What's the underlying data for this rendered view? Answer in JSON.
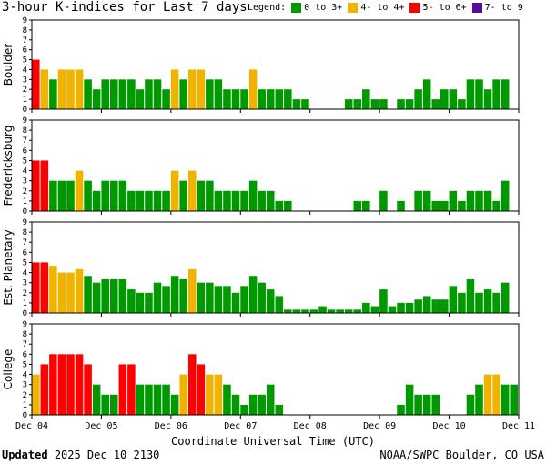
{
  "title": "3-hour K-indices for Last 7 days",
  "legend": {
    "label": "Legend:",
    "items": [
      {
        "label": "0 to 3+",
        "color": "#009900"
      },
      {
        "label": "4- to 4+",
        "color": "#f0b400"
      },
      {
        "label": "5- to 6+",
        "color": "#ff0000"
      },
      {
        "label": "7- to 9",
        "color": "#5a0aa0"
      }
    ]
  },
  "xlabel": "Coordinate Universal Time (UTC)",
  "updated_label": "Updated",
  "updated_value": "2025 Dec 10 2130",
  "credit": "NOAA/SWPC Boulder, CO USA",
  "chart_data": {
    "type": "bar",
    "x_tick_labels": [
      "Dec 04",
      "Dec 05",
      "Dec 06",
      "Dec 07",
      "Dec 08",
      "Dec 09",
      "Dec 10",
      "Dec 11"
    ],
    "y_ticks": [
      0,
      1,
      2,
      3,
      4,
      5,
      6,
      7,
      8,
      9
    ],
    "ylim": [
      0,
      9
    ],
    "panels": [
      {
        "name": "Boulder",
        "values": [
          5,
          4,
          3,
          4,
          4,
          4,
          3,
          2,
          3,
          3,
          3,
          3,
          2,
          3,
          3,
          2,
          4,
          3,
          4,
          4,
          3,
          3,
          2,
          2,
          2,
          4,
          2,
          2,
          2,
          2,
          1,
          1,
          0,
          0,
          0,
          0,
          1,
          1,
          2,
          1,
          1,
          0,
          1,
          1,
          2,
          3,
          1,
          2,
          2,
          1,
          3,
          3,
          2,
          3,
          3,
          0
        ]
      },
      {
        "name": "Fredericksburg",
        "values": [
          5,
          5,
          3,
          3,
          3,
          4,
          3,
          2,
          3,
          3,
          3,
          2,
          2,
          2,
          2,
          2,
          4,
          3,
          4,
          3,
          3,
          2,
          2,
          2,
          2,
          3,
          2,
          2,
          1,
          1,
          0,
          0,
          0,
          0,
          0,
          0,
          0,
          1,
          1,
          0,
          2,
          0,
          1,
          0,
          2,
          2,
          1,
          1,
          2,
          1,
          2,
          2,
          2,
          1,
          3,
          0
        ]
      },
      {
        "name": "Est. Planetary",
        "values": [
          5,
          5,
          4.67,
          4,
          4,
          4.33,
          3.67,
          3,
          3.33,
          3.33,
          3.33,
          2.33,
          2,
          2,
          3,
          2.67,
          3.67,
          3.33,
          4.33,
          3,
          3,
          2.67,
          2.67,
          2,
          2.67,
          3.67,
          3,
          2.33,
          1.67,
          0.33,
          0.33,
          0.33,
          0.33,
          0.67,
          0.33,
          0.33,
          0.33,
          0.33,
          1,
          0.67,
          2.33,
          0.67,
          1,
          1,
          1.33,
          1.67,
          1.33,
          1.33,
          2.67,
          2,
          3.33,
          2,
          2.33,
          2,
          3,
          0
        ]
      },
      {
        "name": "College",
        "values": [
          4,
          5,
          6,
          6,
          6,
          6,
          5,
          3,
          2,
          2,
          5,
          5,
          3,
          3,
          3,
          3,
          2,
          4,
          6,
          5,
          4,
          4,
          3,
          2,
          1,
          2,
          2,
          3,
          1,
          0,
          0,
          0,
          0,
          0,
          0,
          0,
          0,
          0,
          0,
          0,
          0,
          0,
          1,
          3,
          2,
          2,
          2,
          0,
          0,
          0,
          2,
          3,
          4,
          4,
          3,
          3
        ]
      }
    ]
  }
}
